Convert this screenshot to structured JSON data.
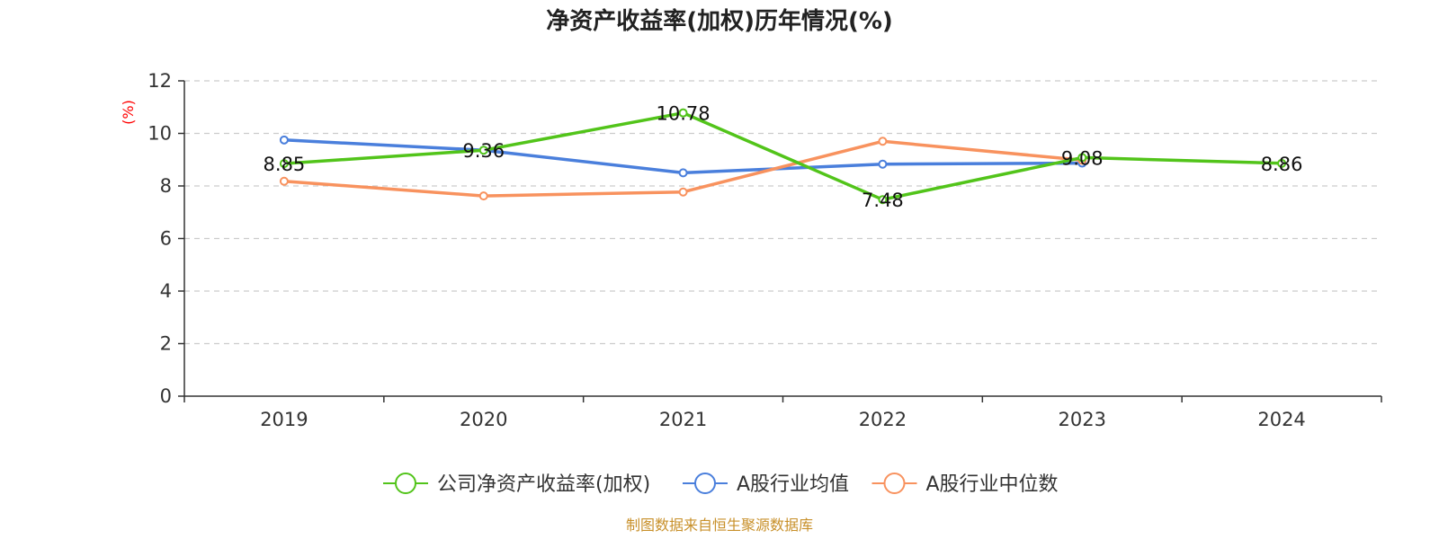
{
  "chart_data": {
    "type": "line",
    "title": "净资产收益率(加权)历年情况(%)",
    "xlabel": "",
    "ylabel": "(%)",
    "ylim": [
      0,
      12
    ],
    "yticks": [
      0,
      2,
      4,
      6,
      8,
      10,
      12
    ],
    "categories": [
      "2019",
      "2020",
      "2021",
      "2022",
      "2023",
      "2024"
    ],
    "grid": true,
    "legend_position": "bottom",
    "series": [
      {
        "name": "公司净资产收益率(加权)",
        "color": "#52c41a",
        "values": [
          8.85,
          9.36,
          10.78,
          7.48,
          9.08,
          8.86
        ],
        "labels": [
          "8.85",
          "9.36",
          "10.78",
          "7.48",
          "9.08",
          "8.86"
        ]
      },
      {
        "name": "A股行业均值",
        "color": "#4a7fdc",
        "values": [
          9.75,
          9.36,
          8.5,
          8.83,
          8.87,
          null
        ]
      },
      {
        "name": "A股行业中位数",
        "color": "#f8925e",
        "values": [
          8.18,
          7.62,
          7.77,
          9.7,
          8.98,
          null
        ]
      }
    ],
    "source": "制图数据来自恒生聚源数据库"
  }
}
